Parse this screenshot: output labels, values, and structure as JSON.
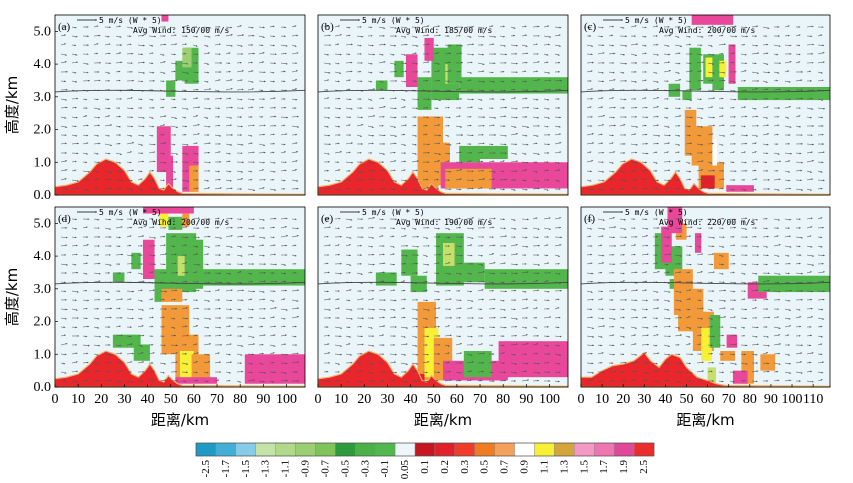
{
  "chart_data": {
    "type": "heatmap",
    "title": "",
    "xlabel": "距离/km",
    "ylabel": "高度/km",
    "ylim": [
      0,
      5.5
    ],
    "y_ticks": [
      "0.0",
      "1.0",
      "2.0",
      "3.0",
      "4.0",
      "5.0"
    ],
    "x_ticks_default": [
      "0",
      "10",
      "20",
      "30",
      "40",
      "50",
      "60",
      "70",
      "80",
      "90",
      "100"
    ],
    "x_ticks_panel_f": [
      "0",
      "10",
      "20",
      "30",
      "40",
      "50",
      "60",
      "70",
      "80",
      "90",
      "100",
      "110"
    ],
    "vector_reference": "5 m/s (W * 5)",
    "panels": [
      {
        "label": "(a)",
        "avg_wind": "Avg Wind: 150/00 m/s",
        "xmax": 108
      },
      {
        "label": "(b)",
        "avg_wind": "Avg Wind: 185/00 m/s",
        "xmax": 108
      },
      {
        "label": "(c)",
        "avg_wind": "Avg Wind: 200/00 m/s",
        "xmax": 108
      },
      {
        "label": "(d)",
        "avg_wind": "Avg Wind: 200/00 m/s",
        "xmax": 108
      },
      {
        "label": "(e)",
        "avg_wind": "Avg Wind: 190/00 m/s",
        "xmax": 108
      },
      {
        "label": "(f)",
        "avg_wind": "Avg Wind: 220/00 m/s",
        "xmax": 118
      }
    ],
    "colorbar": {
      "ticks": [
        "-2.5",
        "-1.7",
        "-1.5",
        "-1.3",
        "-1.1",
        "-0.9",
        "-0.7",
        "-0.5",
        "-0.3",
        "-0.1",
        "0.05",
        "0.1",
        "0.2",
        "0.3",
        "0.5",
        "0.7",
        "0.9",
        "1.1",
        "1.3",
        "1.5",
        "1.7",
        "1.9",
        "2.5"
      ],
      "colors": [
        "#1e9bc4",
        "#43afd6",
        "#86cbe7",
        "#c4e3a9",
        "#b2d98b",
        "#9ccf73",
        "#7fc35a",
        "#2e9a3e",
        "#4bb048",
        "#53b74f",
        "#eef6fb",
        "#c51722",
        "#e0202a",
        "#ee3d2a",
        "#f07c22",
        "#f6a15b",
        "#fefefe",
        "#f7f035",
        "#d4a63a",
        "#f29ac4",
        "#ee77b2",
        "#e2489a",
        "#ec2d2d"
      ]
    }
  }
}
